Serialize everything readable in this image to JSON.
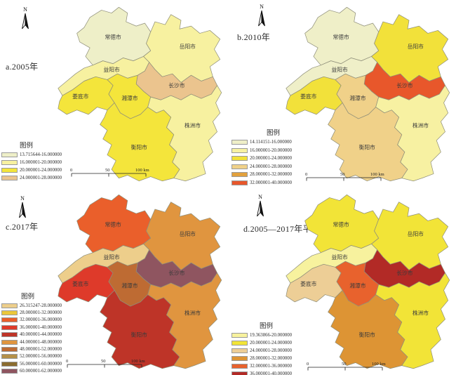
{
  "north_label": "N",
  "scalebar": {
    "zero": "0",
    "mid": "50",
    "end": "100 km"
  },
  "cities": [
    {
      "id": "changde",
      "name": "常德市"
    },
    {
      "id": "yueyang",
      "name": "岳阳市"
    },
    {
      "id": "yiyang",
      "name": "益阳市"
    },
    {
      "id": "changsha",
      "name": "长沙市"
    },
    {
      "id": "loudi",
      "name": "娄底市"
    },
    {
      "id": "xiangtan",
      "name": "湘潭市"
    },
    {
      "id": "zhuzhou",
      "name": "株洲市"
    },
    {
      "id": "hengyang",
      "name": "衡阳市"
    }
  ],
  "panels": [
    {
      "id": "a",
      "label": "a.2005年",
      "legend_title": "图例",
      "classes": [
        {
          "range": "13.715644-16.000000",
          "color": "#EEEFC8"
        },
        {
          "range": "16.000001-20.000000",
          "color": "#F7F1A0"
        },
        {
          "range": "20.000001-24.000000",
          "color": "#F4E53B"
        },
        {
          "range": "24.000001-28.000000",
          "color": "#EBC48E"
        }
      ],
      "city_colors": {
        "changde": "#EEEFC8",
        "yueyang": "#F7F1A0",
        "yiyang": "#F7F1A0",
        "changsha": "#EBC48E",
        "loudi": "#F4E53B",
        "xiangtan": "#F4E53B",
        "zhuzhou": "#F7F1A0",
        "hengyang": "#F4E53B"
      }
    },
    {
      "id": "b",
      "label": "b.2010年",
      "legend_title": "图例",
      "classes": [
        {
          "range": "14.114151-16.000000",
          "color": "#EFEFC8"
        },
        {
          "range": "16.000001-20.000000",
          "color": "#F7F1A2"
        },
        {
          "range": "20.000001-24.000000",
          "color": "#F2E13A"
        },
        {
          "range": "24.000001-28.000000",
          "color": "#F0D189"
        },
        {
          "range": "28.000001-32.000000",
          "color": "#E2A13D"
        },
        {
          "range": "32.000001-40.000000",
          "color": "#E8572B"
        }
      ],
      "city_colors": {
        "changde": "#EFEFC8",
        "yueyang": "#F2E13A",
        "yiyang": "#EFEFC8",
        "changsha": "#E8572B",
        "loudi": "#F2E13A",
        "xiangtan": "#F0D189",
        "zhuzhou": "#F7F1A2",
        "hengyang": "#F0D189"
      }
    },
    {
      "id": "c",
      "label": "c.2017年",
      "legend_title": "图例",
      "classes": [
        {
          "range": "26.315247-28.000000",
          "color": "#EDCE8B"
        },
        {
          "range": "28.000001-32.000000",
          "color": "#EBC73B"
        },
        {
          "range": "32.000001-36.000000",
          "color": "#EA5F2B"
        },
        {
          "range": "36.000001-40.000000",
          "color": "#DE3A2A"
        },
        {
          "range": "40.000001-44.000000",
          "color": "#BE3428"
        },
        {
          "range": "44.000001-48.000000",
          "color": "#E0953F"
        },
        {
          "range": "48.000001-52.000000",
          "color": "#BE6B33"
        },
        {
          "range": "52.000001-56.000000",
          "color": "#B59048"
        },
        {
          "range": "56.000001-60.000000",
          "color": "#8A6C2F"
        },
        {
          "range": "60.000001-62.000000",
          "color": "#8F5560"
        }
      ],
      "city_colors": {
        "changde": "#EA5F2B",
        "yueyang": "#E0953F",
        "yiyang": "#EDCE8B",
        "changsha": "#8F5560",
        "loudi": "#DE3A2A",
        "xiangtan": "#BE6B33",
        "zhuzhou": "#E0953F",
        "hengyang": "#BE3428"
      }
    },
    {
      "id": "d",
      "label": "d.2005—2017年平均值",
      "legend_title": "图例",
      "classes": [
        {
          "range": "19.363866-20.000000",
          "color": "#F7F29E"
        },
        {
          "range": "20.000001-24.000000",
          "color": "#F2E437"
        },
        {
          "range": "24.000001-28.000000",
          "color": "#EDCE96"
        },
        {
          "range": "28.000001-32.000000",
          "color": "#DD9434"
        },
        {
          "range": "32.000001-36.000000",
          "color": "#E8622D"
        },
        {
          "range": "36.000001-40.000000",
          "color": "#B22A26"
        }
      ],
      "city_colors": {
        "changde": "#F2E437",
        "yueyang": "#F2E437",
        "yiyang": "#F7F29E",
        "changsha": "#B22A26",
        "loudi": "#EDCE96",
        "xiangtan": "#E8622D",
        "zhuzhou": "#F2E437",
        "hengyang": "#DD9434"
      }
    }
  ]
}
